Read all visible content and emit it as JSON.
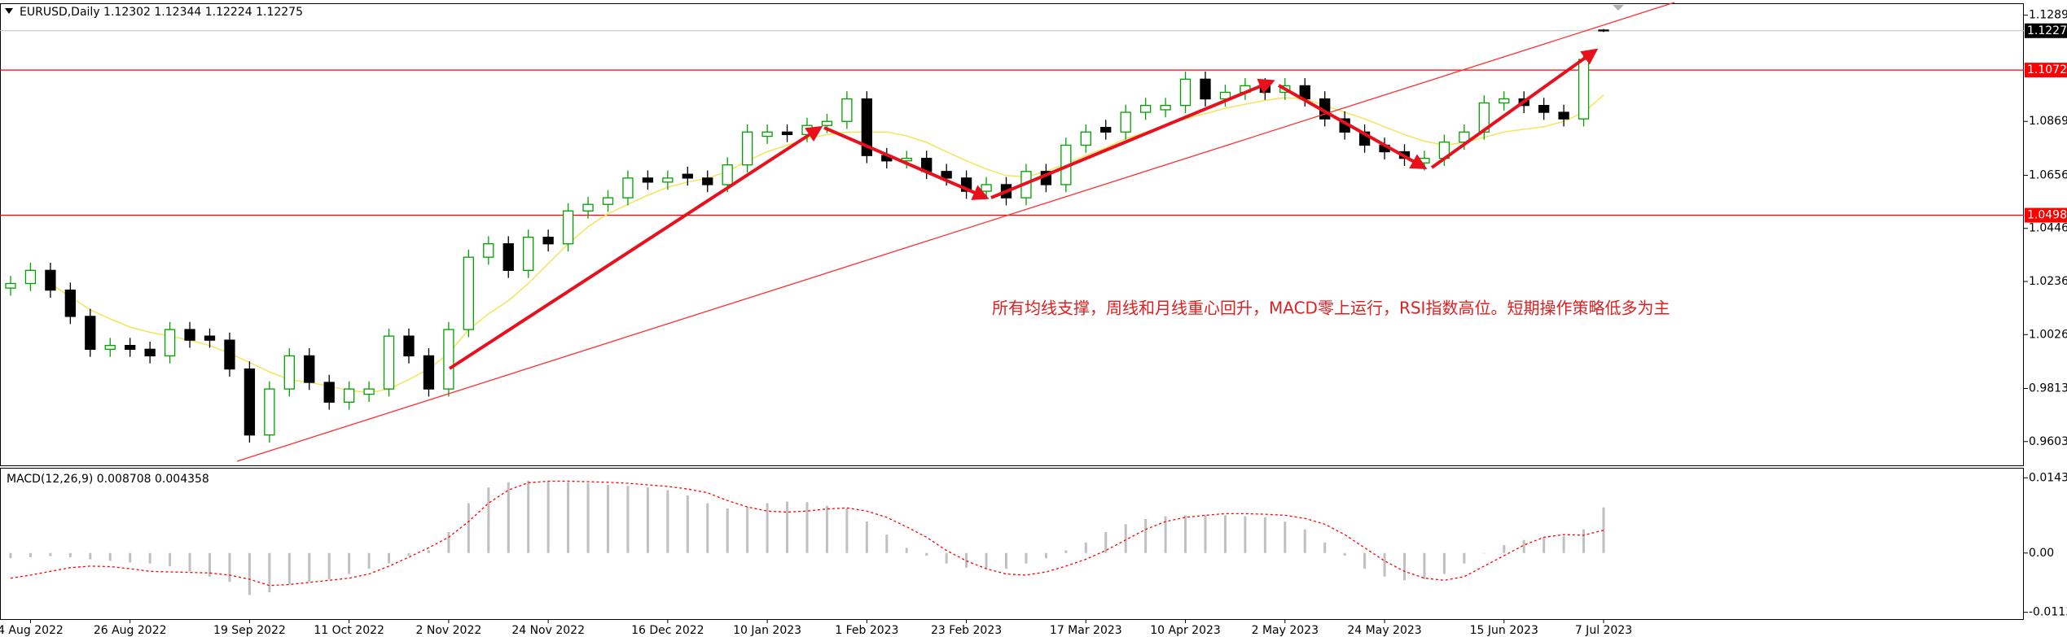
{
  "chart_data": {
    "type": "candlestick",
    "title": "EURUSD,Daily  1.12302 1.12344 1.12224 1.12275",
    "annotation": "所有均线支撑，周线和月线重心回升，MACD零上运行，RSI指数高位。短期操作策略低多为主",
    "categories": [
      null,
      "4 Aug 2022",
      null,
      null,
      null,
      null,
      "26 Aug 2022",
      null,
      null,
      null,
      null,
      null,
      "19 Sep 2022",
      null,
      null,
      null,
      null,
      "11 Oct 2022",
      null,
      null,
      null,
      null,
      "2 Nov 2022",
      null,
      null,
      null,
      null,
      "24 Nov 2022",
      null,
      null,
      null,
      null,
      null,
      "16 Dec 2022",
      null,
      null,
      null,
      null,
      "10 Jan 2023",
      null,
      null,
      null,
      null,
      "1 Feb 2023",
      null,
      null,
      null,
      null,
      "23 Feb 2023",
      null,
      null,
      null,
      null,
      null,
      "17 Mar 2023",
      null,
      null,
      null,
      null,
      "10 Apr 2023",
      null,
      null,
      null,
      null,
      "2 May 2023",
      null,
      null,
      null,
      null,
      "24 May 2023",
      null,
      null,
      null,
      null,
      null,
      "15 Jun 2023",
      null,
      null,
      null,
      null,
      "7 Jul 2023"
    ],
    "ohlc": [
      [
        1.021,
        1.0258,
        1.018,
        1.0228
      ],
      [
        1.0228,
        1.031,
        1.0198,
        1.028
      ],
      [
        1.028,
        1.031,
        1.0172,
        1.0202
      ],
      [
        1.0202,
        1.0232,
        1.0068,
        1.0098
      ],
      [
        1.0098,
        1.0128,
        0.9938,
        0.9968
      ],
      [
        0.9968,
        1.0013,
        0.9938,
        0.9983
      ],
      [
        0.9983,
        1.0013,
        0.9938,
        0.9968
      ],
      [
        0.9968,
        0.9998,
        0.9912,
        0.9942
      ],
      [
        0.9942,
        1.0076,
        0.9912,
        1.0046
      ],
      [
        1.0046,
        1.0076,
        0.9974,
        1.0004
      ],
      [
        1.002,
        1.005,
        0.9974,
        1.0004
      ],
      [
        1.0004,
        1.0034,
        0.986,
        0.989
      ],
      [
        0.989,
        0.992,
        0.9599,
        0.9629
      ],
      [
        0.9629,
        0.9841,
        0.9599,
        0.9811
      ],
      [
        0.9811,
        0.9972,
        0.9781,
        0.9942
      ],
      [
        0.9942,
        0.9972,
        0.9807,
        0.9837
      ],
      [
        0.9837,
        0.9867,
        0.9729,
        0.9759
      ],
      [
        0.9759,
        0.9841,
        0.9729,
        0.9811
      ],
      [
        0.979,
        0.9841,
        0.976,
        0.9811
      ],
      [
        0.9811,
        1.005,
        0.9781,
        1.002
      ],
      [
        1.002,
        1.005,
        0.9912,
        0.9942
      ],
      [
        0.9942,
        0.9972,
        0.9781,
        0.9811
      ],
      [
        0.9811,
        1.0076,
        0.9781,
        1.0046
      ],
      [
        1.0046,
        1.0362,
        1.0016,
        1.0332
      ],
      [
        1.0332,
        1.0415,
        1.0302,
        1.0385
      ],
      [
        1.0385,
        1.0415,
        1.025,
        1.028
      ],
      [
        1.028,
        1.0441,
        1.025,
        1.0411
      ],
      [
        1.0411,
        1.0441,
        1.0355,
        1.0385
      ],
      [
        1.0385,
        1.0545,
        1.0355,
        1.0515
      ],
      [
        1.0515,
        1.0571,
        1.0485,
        1.0541
      ],
      [
        1.0541,
        1.0597,
        1.0511,
        1.0567
      ],
      [
        1.0567,
        1.0675,
        1.0537,
        1.0645
      ],
      [
        1.0645,
        1.0675,
        1.0599,
        1.0629
      ],
      [
        1.0629,
        1.0675,
        1.0599,
        1.0645
      ],
      [
        1.066,
        1.069,
        1.0615,
        1.0645
      ],
      [
        1.0645,
        1.0675,
        1.0589,
        1.0619
      ],
      [
        1.0619,
        1.0727,
        1.0589,
        1.0697
      ],
      [
        1.0697,
        1.0857,
        1.0667,
        1.0827
      ],
      [
        1.081,
        1.0857,
        1.078,
        1.0827
      ],
      [
        1.0827,
        1.0857,
        1.0787,
        1.0817
      ],
      [
        1.0817,
        1.0883,
        1.0787,
        1.0853
      ],
      [
        1.0853,
        1.0899,
        1.0823,
        1.0869
      ],
      [
        1.0869,
        1.0988,
        1.0839,
        1.0958
      ],
      [
        1.0958,
        1.0988,
        1.0704,
        1.0734
      ],
      [
        1.0734,
        1.0764,
        1.0683,
        1.0713
      ],
      [
        1.0713,
        1.0753,
        1.0683,
        1.0723
      ],
      [
        1.0723,
        1.0753,
        1.0641,
        1.0671
      ],
      [
        1.0671,
        1.0701,
        1.0615,
        1.0645
      ],
      [
        1.0645,
        1.0675,
        1.0563,
        1.0593
      ],
      [
        1.0593,
        1.0649,
        1.0563,
        1.0619
      ],
      [
        1.0619,
        1.0649,
        1.0537,
        1.0567
      ],
      [
        1.0567,
        1.0701,
        1.0537,
        1.0671
      ],
      [
        1.0671,
        1.0701,
        1.0589,
        1.0619
      ],
      [
        1.0619,
        1.0805,
        1.0589,
        1.0775
      ],
      [
        1.0775,
        1.0857,
        1.0745,
        1.0827
      ],
      [
        1.0845,
        1.0875,
        1.0797,
        1.0827
      ],
      [
        1.0827,
        1.0935,
        1.0797,
        1.0905
      ],
      [
        1.0905,
        1.0962,
        1.0875,
        1.0932
      ],
      [
        1.0915,
        1.0962,
        1.0885,
        1.0932
      ],
      [
        1.0932,
        1.1066,
        1.0902,
        1.1036
      ],
      [
        1.1036,
        1.1066,
        1.0928,
        1.0958
      ],
      [
        1.0958,
        1.1014,
        1.0928,
        1.0984
      ],
      [
        1.0984,
        1.104,
        1.0954,
        1.101
      ],
      [
        1.101,
        1.104,
        1.0954,
        1.0984
      ],
      [
        1.0984,
        1.104,
        1.0954,
        1.101
      ],
      [
        1.101,
        1.104,
        1.0928,
        1.0958
      ],
      [
        1.0958,
        1.0988,
        1.0849,
        1.0879
      ],
      [
        1.0879,
        1.0909,
        1.0797,
        1.0827
      ],
      [
        1.0827,
        1.0857,
        1.0745,
        1.0775
      ],
      [
        1.0775,
        1.0805,
        1.0719,
        1.0749
      ],
      [
        1.0749,
        1.0779,
        1.0693,
        1.0723
      ],
      [
        1.0705,
        1.0753,
        1.0675,
        1.0723
      ],
      [
        1.0723,
        1.0817,
        1.0693,
        1.0787
      ],
      [
        1.0787,
        1.0857,
        1.0757,
        1.0827
      ],
      [
        1.0827,
        1.0972,
        1.0797,
        1.0942
      ],
      [
        1.0942,
        1.0988,
        1.0912,
        1.0958
      ],
      [
        1.0958,
        1.0988,
        1.0902,
        1.0932
      ],
      [
        1.0932,
        1.0962,
        1.0875,
        1.0905
      ],
      [
        1.0905,
        1.0935,
        1.0849,
        1.0879
      ],
      [
        1.0879,
        1.1144,
        1.0849,
        1.1114
      ],
      [
        1.12302,
        1.12344,
        1.12224,
        1.12275
      ]
    ],
    "bull_color": "#00a000",
    "bear_color": "#000000",
    "ma_color": "#f2e55c",
    "ma_values": [
      null,
      null,
      1.0228,
      1.0176,
      1.0124,
      1.0088,
      1.0056,
      1.0035,
      1.002,
      1.0004,
      0.9983,
      0.9952,
      0.9916,
      0.9879,
      0.9848,
      0.9837,
      0.9822,
      0.9806,
      0.9796,
      0.9811,
      0.9848,
      0.989,
      0.9952,
      1.0046,
      1.0108,
      1.016,
      1.0228,
      1.0306,
      1.0385,
      1.0452,
      1.0504,
      1.0541,
      1.0577,
      1.0609,
      1.0629,
      1.0645,
      1.0671,
      1.0713,
      1.0749,
      1.0775,
      1.0801,
      1.0817,
      1.0827,
      1.0827,
      1.0827,
      1.0812,
      1.0786,
      1.0749,
      1.0713,
      1.0681,
      1.0655,
      1.065,
      1.0671,
      1.0702,
      1.0734,
      1.0765,
      1.0801,
      1.0827,
      1.0853,
      1.0879,
      1.09,
      1.0921,
      1.0937,
      1.0952,
      1.0963,
      1.0958,
      1.0932,
      1.0905,
      1.0879,
      1.0848,
      1.0817,
      1.0791,
      1.0775,
      1.0786,
      1.0806,
      1.0827,
      1.0838,
      1.0848,
      1.0869,
      1.0905,
      1.0973
    ],
    "ylim": [
      0.9509,
      1.1333
    ],
    "yticks": [
      {
        "value": 1.1289,
        "label": "1.12890"
      },
      {
        "value": 1.0869,
        "label": "1.08690"
      },
      {
        "value": 1.0656,
        "label": "1.06560"
      },
      {
        "value": 1.0446,
        "label": "1.04460"
      },
      {
        "value": 1.0236,
        "label": "1.02360"
      },
      {
        "value": 1.0026,
        "label": "1.00260"
      },
      {
        "value": 0.9813,
        "label": "0.98130"
      },
      {
        "value": 0.9603,
        "label": "0.96030"
      }
    ],
    "levels": [
      1.10721,
      1.04981
    ],
    "level_color": "#ff0000",
    "grid": false,
    "macd": {
      "label": "MACD(12,26,9) 0.008708 0.004358",
      "histogram_color": "#c0c0c0",
      "signal_color": "#ff0000",
      "histogram": [
        -0.001,
        -0.0008,
        -0.0006,
        -0.0008,
        -0.0012,
        -0.0015,
        -0.0018,
        -0.002,
        -0.0025,
        -0.0035,
        -0.0045,
        -0.0055,
        -0.008,
        -0.0075,
        -0.006,
        -0.0055,
        -0.005,
        -0.004,
        -0.003,
        -0.002,
        -0.0005,
        0.0005,
        0.004,
        0.0095,
        0.0125,
        0.0135,
        0.0138,
        0.0137,
        0.0135,
        0.0133,
        0.013,
        0.0128,
        0.0125,
        0.012,
        0.011,
        0.0095,
        0.0085,
        0.0088,
        0.0095,
        0.0098,
        0.0097,
        0.009,
        0.0085,
        0.006,
        0.0035,
        0.001,
        -0.0005,
        -0.002,
        -0.0028,
        -0.003,
        -0.003,
        -0.002,
        -0.001,
        0.0005,
        0.002,
        0.004,
        0.0055,
        0.0065,
        0.007,
        0.0072,
        0.0073,
        0.0072,
        0.007,
        0.0068,
        0.006,
        0.0045,
        0.002,
        -0.0005,
        -0.003,
        -0.0045,
        -0.0052,
        -0.005,
        -0.004,
        -0.002,
        0.0,
        0.0015,
        0.0025,
        0.003,
        0.0032,
        0.0045,
        0.008708
      ],
      "signal": [
        -0.0048,
        -0.0042,
        -0.0035,
        -0.0028,
        -0.0025,
        -0.0026,
        -0.003,
        -0.0035,
        -0.0036,
        -0.0037,
        -0.0038,
        -0.0042,
        -0.005,
        -0.0062,
        -0.006,
        -0.0056,
        -0.0052,
        -0.0048,
        -0.004,
        -0.0025,
        -0.0008,
        0.001,
        0.003,
        0.006,
        0.0095,
        0.012,
        0.0134,
        0.0137,
        0.0137,
        0.0136,
        0.0135,
        0.0133,
        0.013,
        0.0127,
        0.0122,
        0.0115,
        0.01,
        0.0088,
        0.008,
        0.0078,
        0.008,
        0.0084,
        0.0086,
        0.008,
        0.0068,
        0.005,
        0.003,
        0.0005,
        -0.0015,
        -0.003,
        -0.004,
        -0.0042,
        -0.0036,
        -0.0025,
        -0.0012,
        0.0005,
        0.0025,
        0.0045,
        0.006,
        0.0068,
        0.0072,
        0.0075,
        0.0075,
        0.0074,
        0.0072,
        0.0066,
        0.0055,
        0.0035,
        0.001,
        -0.0015,
        -0.0035,
        -0.0048,
        -0.0052,
        -0.0045,
        -0.0025,
        -0.0005,
        0.0015,
        0.003,
        0.0035,
        0.0034,
        0.004358
      ],
      "ylim": [
        -0.0126,
        0.0161
      ],
      "yticks": [
        0.01434,
        {
          "value": 0,
          "label": "0.00"
        },
        -0.0113
      ]
    }
  }
}
